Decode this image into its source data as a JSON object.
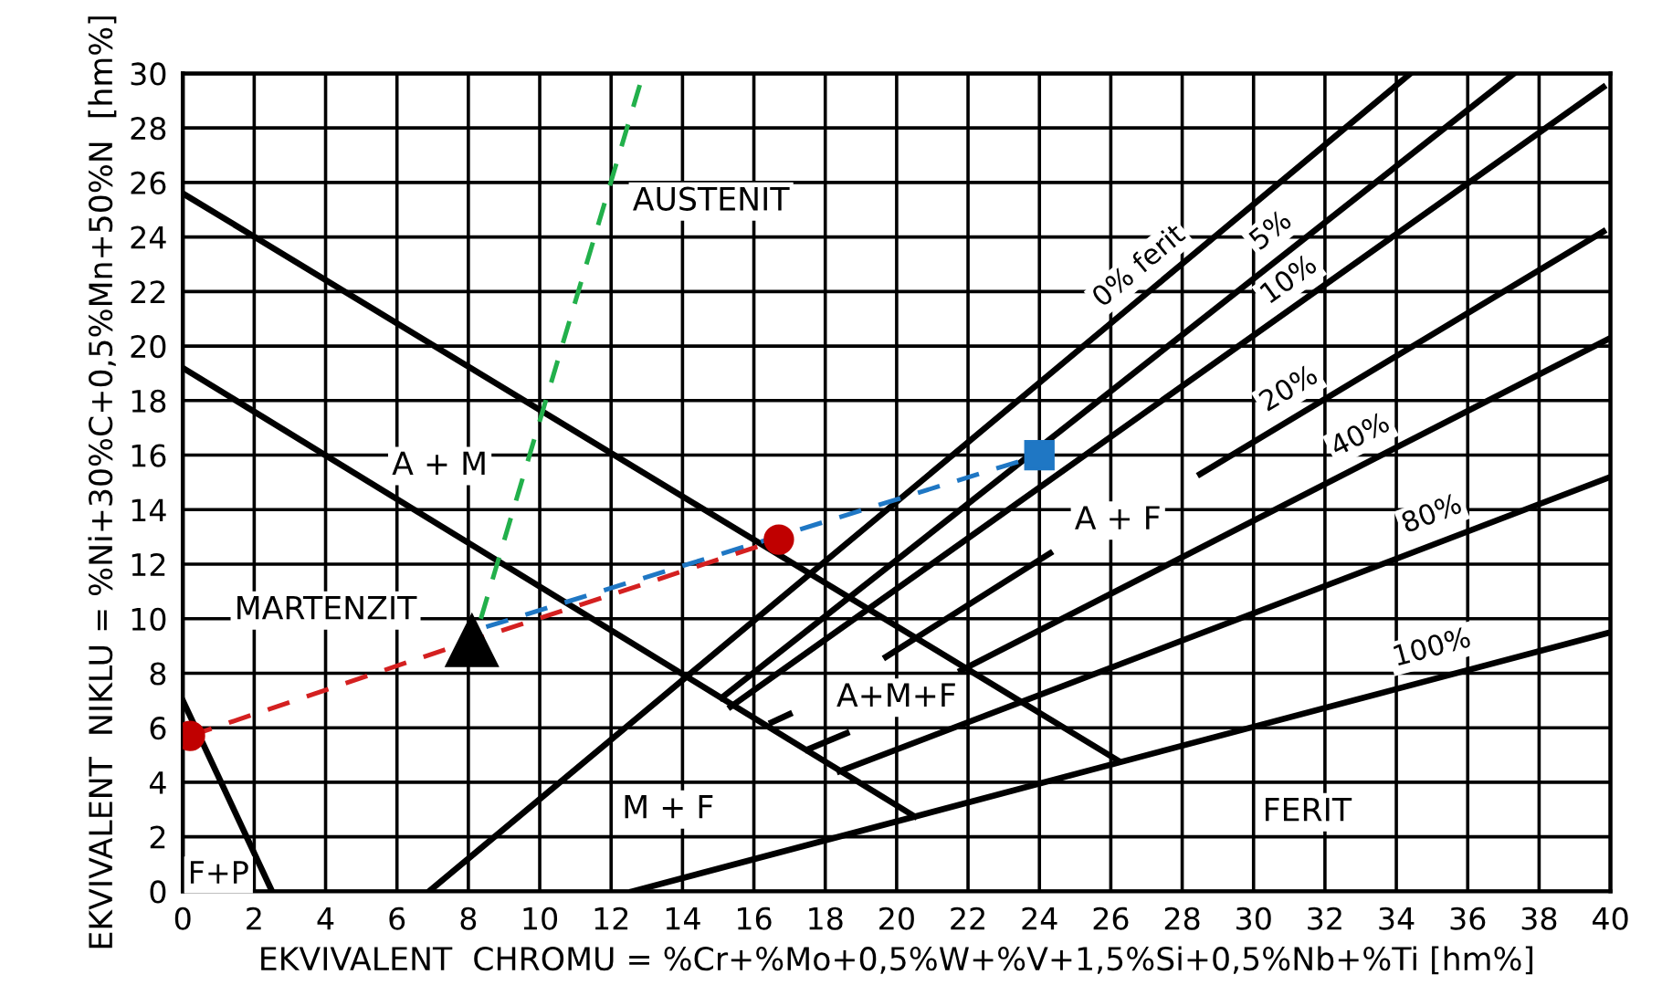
{
  "chart_data": {
    "type": "line",
    "xlabel": "EKVIVALENT  CHROMU = %Cr+%Mo+0,5%W+%V+1,5%Si+0,5%Nb+%Ti [hm%]",
    "ylabel": "EKVIVALENT  NIKLU = %Ni+30%C+0,5%Mn+50%N  [hm%]",
    "xlim": [
      0,
      40
    ],
    "ylim": [
      0,
      30
    ],
    "xticks": [
      0,
      2,
      4,
      6,
      8,
      10,
      12,
      14,
      16,
      18,
      20,
      22,
      24,
      26,
      28,
      30,
      32,
      34,
      36,
      38,
      40
    ],
    "yticks": [
      0,
      2,
      4,
      6,
      8,
      10,
      12,
      14,
      16,
      18,
      20,
      22,
      24,
      26,
      28,
      30
    ],
    "grid": true,
    "legend": false,
    "series": [
      {
        "x": [
          0,
          26.2
        ],
        "values": [
          25.6,
          4.8
        ],
        "color": "#000000",
        "line_style": "solid"
      },
      {
        "x": [
          0,
          20.5
        ],
        "values": [
          19.2,
          2.75
        ],
        "color": "#000000",
        "line_style": "solid"
      },
      {
        "x": [
          0,
          2.5
        ],
        "values": [
          7,
          0
        ],
        "color": "#000000",
        "line_style": "solid"
      },
      {
        "x": [
          6.9,
          34.4
        ],
        "values": [
          0,
          30
        ],
        "color": "#000000",
        "line_style": "solid"
      },
      {
        "x": [
          15.1,
          37.3
        ],
        "values": [
          7.1,
          30
        ],
        "color": "#000000",
        "line_style": "solid"
      },
      {
        "x": [
          15.35,
          39.8
        ],
        "values": [
          6.77,
          29.5
        ],
        "color": "#000000",
        "line_style": "solid"
      },
      {
        "x": [
          16.5,
          17.0
        ],
        "values": [
          6.2,
          6.5
        ],
        "color": "#000000",
        "line_style": "solid"
      },
      {
        "x": [
          17.5,
          18.6
        ],
        "values": [
          5.2,
          5.8
        ],
        "color": "#000000",
        "line_style": "solid"
      },
      {
        "x": [
          19.7,
          24.3,
          null,
          28.5,
          39.8
        ],
        "values": [
          8.6,
          12.4,
          null,
          15.3,
          24.2
        ],
        "color": "#000000",
        "line_style": "solid"
      },
      {
        "x": [
          21.8,
          40
        ],
        "values": [
          8.1,
          20.3
        ],
        "color": "#000000",
        "line_style": "solid"
      },
      {
        "x": [
          18.4,
          40
        ],
        "values": [
          4.4,
          15.2
        ],
        "color": "#000000",
        "line_style": "solid"
      },
      {
        "x": [
          12.6,
          40
        ],
        "values": [
          0,
          9.5
        ],
        "color": "#000000",
        "line_style": "solid"
      },
      {
        "x": [
          8.35,
          12.9
        ],
        "values": [
          10,
          30
        ],
        "color": "#22b04b",
        "line_style": "dashed"
      },
      {
        "x": [
          8.5,
          24.0
        ],
        "values": [
          9.7,
          16.0
        ],
        "color": "#1f77c4",
        "line_style": "dashed"
      },
      {
        "x": [
          0.2,
          8.1,
          16.7
        ],
        "values": [
          5.7,
          9.2,
          12.9
        ],
        "color": "#d42020",
        "line_style": "dashed"
      },
      {
        "type": "scatter",
        "x": [
          0.2,
          16.7
        ],
        "values": [
          5.7,
          12.9
        ],
        "color": "#c00000",
        "marker": "circle"
      },
      {
        "type": "scatter",
        "x": [
          24.0
        ],
        "values": [
          16.0
        ],
        "color": "#1f77c4",
        "marker": "square"
      },
      {
        "type": "scatter",
        "x": [
          8.1
        ],
        "values": [
          9.2
        ],
        "color": "#000000",
        "marker": "triangle"
      }
    ],
    "annotations": [
      "AUSTENIT",
      "A + M",
      "MARTENZIT",
      "M + F",
      "F+P",
      "A+M+F",
      "A + F",
      "FERIT",
      "0% ferit",
      "5%",
      "10%",
      "20%",
      "40%",
      "80%",
      "100%"
    ]
  }
}
